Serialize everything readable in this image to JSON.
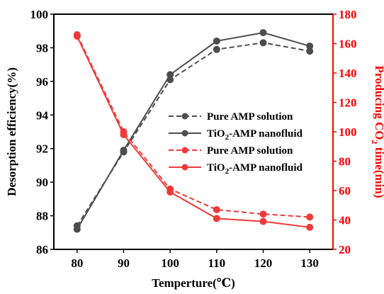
{
  "colors": {
    "left_series": "#4d4d4d",
    "right_series": "#f03a3a",
    "right_axis": "#ff0000",
    "axis": "#000000"
  },
  "chart_data": {
    "type": "line",
    "x": [
      80,
      90,
      100,
      110,
      120,
      130
    ],
    "xlim": [
      75,
      135
    ],
    "xticks": [
      "80",
      "90",
      "100",
      "110",
      "120",
      "130"
    ],
    "xlabel": "Temperture(℃)",
    "ylabel_left": "Desorption efficiency(%)",
    "ylim_left": [
      86,
      100
    ],
    "yticks_left": [
      "86",
      "88",
      "90",
      "92",
      "94",
      "96",
      "98",
      "100"
    ],
    "ylabel_right": "Producing CO2 time(min)",
    "ylabel_right_parts": {
      "pre": "Producing CO",
      "sub": "2",
      "post": " time(min)"
    },
    "ylim_right": [
      20,
      180
    ],
    "yticks_right": [
      "20",
      "40",
      "60",
      "80",
      "100",
      "120",
      "140",
      "160",
      "180"
    ],
    "grid": false,
    "legend_position": "center-right",
    "series": [
      {
        "name": "Pure AMP solution",
        "axis": "left",
        "style": "dashed",
        "color": "#4d4d4d",
        "values": [
          87.4,
          91.8,
          96.1,
          97.9,
          98.3,
          97.8
        ]
      },
      {
        "name": "TiO2-AMP nanofluid",
        "name_parts": {
          "pre": "TiO",
          "sub": "2",
          "post": "-AMP nanofluid"
        },
        "axis": "left",
        "style": "solid",
        "color": "#4d4d4d",
        "values": [
          87.2,
          91.9,
          96.4,
          98.4,
          98.9,
          98.1
        ]
      },
      {
        "name": "Pure AMP solution",
        "axis": "right",
        "style": "dashed",
        "color": "#f03a3a",
        "values": [
          166,
          100,
          61,
          47,
          44,
          42
        ]
      },
      {
        "name": "TiO2-AMP nanofluid",
        "name_parts": {
          "pre": "TiO",
          "sub": "2",
          "post": "-AMP nanofluid"
        },
        "axis": "right",
        "style": "solid",
        "color": "#f03a3a",
        "values": [
          165,
          98,
          59,
          41,
          39,
          35
        ]
      }
    ]
  }
}
